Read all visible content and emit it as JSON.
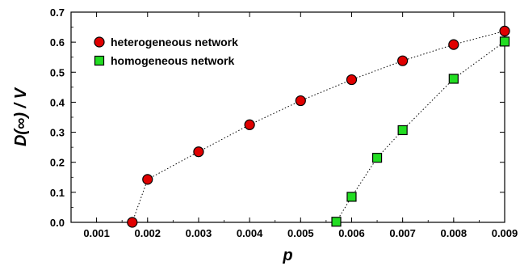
{
  "chart_data": {
    "type": "scatter",
    "xlabel": "p",
    "ylabel": "D(∞) / V",
    "xlim": [
      0.0005,
      0.009
    ],
    "ylim": [
      0,
      0.7
    ],
    "xticks": [
      "0.001",
      "0.002",
      "0.003",
      "0.004",
      "0.005",
      "0.006",
      "0.007",
      "0.008",
      "0.009"
    ],
    "yticks": [
      "0.0",
      "0.1",
      "0.2",
      "0.3",
      "0.4",
      "0.5",
      "0.6",
      "0.7"
    ],
    "grid": false,
    "legend_position": "top-left",
    "series": [
      {
        "name": "heterogeneous network",
        "marker": "circle",
        "color": "#e00000",
        "line": "dotted",
        "x": [
          0.0017,
          0.002,
          0.003,
          0.004,
          0.005,
          0.006,
          0.007,
          0.008,
          0.009
        ],
        "y": [
          0.0,
          0.143,
          0.235,
          0.325,
          0.405,
          0.475,
          0.538,
          0.592,
          0.637
        ]
      },
      {
        "name": "homogeneous network",
        "marker": "square",
        "color": "#22dd22",
        "line": "dotted",
        "x": [
          0.0057,
          0.006,
          0.0065,
          0.007,
          0.008,
          0.009
        ],
        "y": [
          0.002,
          0.085,
          0.215,
          0.307,
          0.478,
          0.602
        ]
      }
    ]
  }
}
